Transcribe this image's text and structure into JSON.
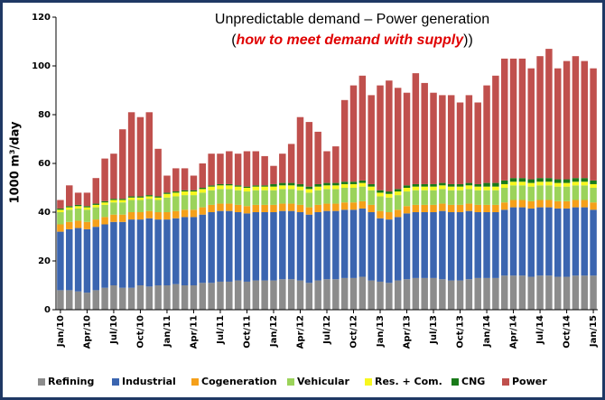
{
  "chart_data": {
    "type": "stacked_bar",
    "title": "Unpredictable demand – Power generation",
    "subtitle": [
      "(",
      "how to meet demand with supply",
      "))"
    ],
    "y_label": "1000 m³/day",
    "categories": [
      "Jan/10",
      null,
      null,
      "Apr/10",
      null,
      null,
      "Jul/10",
      null,
      null,
      "Oct/10",
      null,
      null,
      "Jan/11",
      null,
      null,
      "Apr/11",
      null,
      null,
      "Jul/11",
      null,
      null,
      "Oct/11",
      null,
      null,
      "Jan/12",
      null,
      null,
      "Apr/12",
      null,
      null,
      "Jul/12",
      null,
      null,
      "Oct/12",
      null,
      null,
      "Jan/13",
      null,
      null,
      "Apr/13",
      null,
      null,
      "Jul/13",
      null,
      null,
      "Oct/13",
      null,
      null,
      "Jan/14",
      null,
      null,
      "Apr/14",
      null,
      null,
      "Jul/14",
      null,
      null,
      "Oct/14",
      null,
      null,
      "Jan/15"
    ],
    "series": [
      {
        "name": "Refining",
        "color": "#8c8c8c",
        "values": [
          8,
          8,
          7.5,
          7,
          8,
          9,
          10,
          9,
          9,
          10,
          9.5,
          10,
          10,
          10.5,
          10,
          10,
          11,
          11,
          11.5,
          11.5,
          12,
          11.5,
          12,
          12,
          12,
          12.5,
          12.5,
          12,
          11,
          12,
          12.5,
          12.5,
          13,
          13,
          13.5,
          12,
          11.5,
          11,
          12,
          12.5,
          13,
          13,
          13,
          12.5,
          12,
          12,
          12.5,
          13,
          13,
          13,
          14,
          14,
          14,
          13.5,
          14,
          14,
          13.5,
          13.5,
          14,
          14,
          14
        ]
      },
      {
        "name": "Industrial",
        "color": "#3b65b0",
        "values": [
          24,
          25,
          26,
          26,
          26,
          26,
          26,
          27,
          28,
          27,
          28,
          27,
          27,
          27,
          28,
          28,
          28,
          29,
          29,
          29,
          28,
          28,
          28,
          28,
          28,
          28,
          28,
          28,
          28,
          28,
          28,
          28,
          28,
          28,
          28,
          28,
          26,
          26,
          26,
          27,
          27,
          27,
          27,
          28,
          28,
          28,
          28,
          27,
          27,
          27,
          27,
          28,
          28,
          28,
          28,
          28,
          28,
          28,
          28,
          28,
          27
        ]
      },
      {
        "name": "Cogeneration",
        "color": "#f5a01a",
        "values": [
          3,
          3,
          3,
          3,
          3,
          3,
          3,
          3,
          3,
          3,
          3,
          3,
          3,
          3,
          3,
          3,
          3,
          3,
          3,
          3,
          3,
          3,
          3,
          3,
          3,
          3,
          3,
          3,
          3,
          3,
          3,
          3,
          3,
          3,
          3,
          3,
          3,
          3,
          3,
          3,
          3,
          3,
          3,
          3,
          3,
          3,
          3,
          3,
          3,
          3,
          3,
          3,
          3,
          3,
          3,
          3,
          3,
          3,
          3,
          3,
          3
        ]
      },
      {
        "name": "Vehicular",
        "color": "#9bd35a",
        "values": [
          5,
          5,
          5,
          5,
          5,
          5,
          5,
          5,
          5,
          5,
          5,
          5,
          6,
          6,
          6,
          6,
          6,
          6,
          6,
          6,
          6,
          6,
          6,
          6,
          6,
          6,
          6,
          6,
          6,
          6,
          6,
          6,
          6,
          6,
          6,
          6,
          6,
          6,
          6,
          6,
          6,
          6,
          6,
          6,
          6,
          6,
          6,
          6,
          6,
          6,
          6,
          6,
          6,
          6,
          6,
          6,
          6,
          6,
          6,
          6,
          6
        ]
      },
      {
        "name": "Res. + Com.",
        "color": "#f7f71e",
        "values": [
          1,
          1,
          1,
          1,
          1,
          1,
          1,
          1,
          1,
          1,
          1,
          1,
          1.5,
          1.5,
          1.5,
          1.5,
          1.5,
          1.5,
          1.5,
          1.5,
          1.5,
          1.5,
          1.5,
          1.5,
          1.5,
          1.5,
          1.5,
          1.5,
          1.5,
          1.5,
          1.5,
          1.5,
          1.5,
          1.5,
          1.5,
          1.5,
          1.5,
          1.5,
          1.5,
          1.5,
          1.5,
          1.5,
          1.5,
          1.5,
          1.5,
          1.5,
          1.5,
          1.5,
          1.5,
          1.5,
          1.5,
          1.5,
          1.5,
          1.5,
          1.5,
          1.5,
          1.5,
          1.5,
          1.5,
          1.5,
          1.5
        ]
      },
      {
        "name": "CNG",
        "color": "#1a7a1a",
        "values": [
          0.5,
          0.5,
          0.5,
          0.5,
          0.5,
          0.5,
          0.5,
          0.5,
          0.5,
          0.5,
          0.5,
          0.5,
          0.5,
          0.5,
          0.5,
          0.5,
          0.5,
          0.5,
          0.5,
          0.5,
          0.5,
          0.5,
          0.5,
          0.5,
          1,
          1,
          1,
          1,
          1,
          1,
          1,
          1,
          1,
          1,
          1,
          1,
          1,
          1,
          1,
          1,
          1,
          1,
          1,
          1,
          1,
          1,
          1,
          1,
          1.5,
          1.5,
          1.5,
          1.5,
          1.5,
          1.5,
          1.5,
          1.5,
          1.5,
          1.5,
          1.5,
          1.5,
          1.5
        ]
      },
      {
        "name": "Power",
        "color": "#c0504d",
        "values": [
          3.5,
          8.5,
          5,
          5.5,
          10.5,
          17.5,
          18.5,
          28.5,
          34.5,
          32.5,
          34,
          19.5,
          7,
          9.5,
          9,
          6,
          10,
          13,
          12.5,
          13.5,
          13,
          14.5,
          14,
          12,
          7.5,
          12,
          16,
          27.5,
          26.5,
          21.5,
          13,
          15,
          33.5,
          39.5,
          43,
          36.5,
          43,
          45.5,
          41.5,
          38,
          45.5,
          41.5,
          37.5,
          36,
          36.5,
          33.5,
          36,
          33.5,
          40,
          44,
          50,
          49,
          49,
          45.5,
          50,
          53,
          45.5,
          48.5,
          50,
          48,
          46
        ]
      }
    ],
    "ylim": [
      0,
      120
    ],
    "yticks": [
      0,
      20,
      40,
      60,
      80,
      100,
      120
    ],
    "grid": false,
    "legend": "bottom"
  }
}
